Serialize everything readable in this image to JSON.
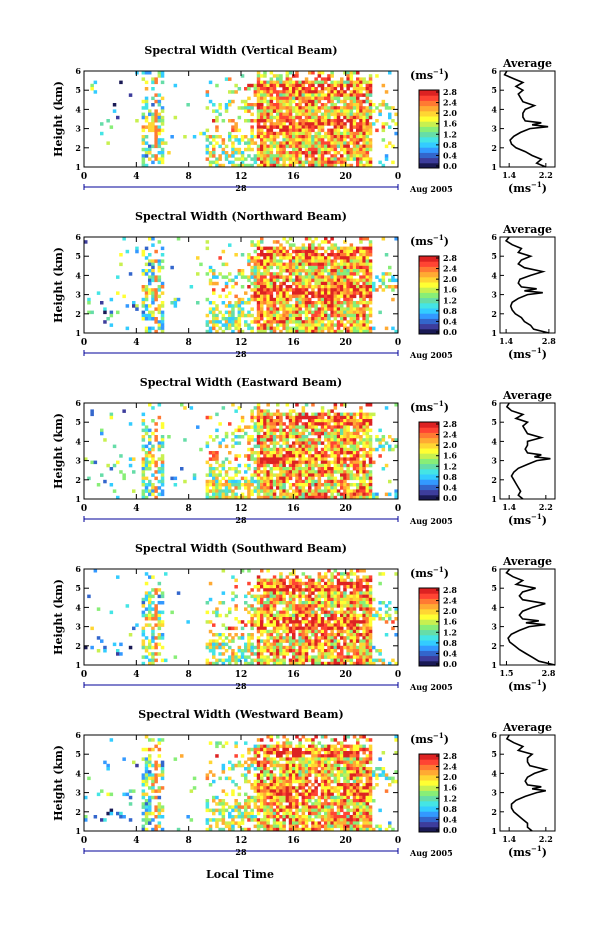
{
  "colors": {
    "scale": [
      "#1a1a55",
      "#3d3d9c",
      "#3366cc",
      "#3399ff",
      "#33ccff",
      "#44e5e5",
      "#66dda8",
      "#88ee77",
      "#c8f050",
      "#ffff33",
      "#ffd633",
      "#ffaa33",
      "#ff7a33",
      "#ff4433",
      "#dd2222"
    ],
    "axis": "#000000",
    "time_axis_line": "#000099"
  },
  "x_label": "Local Time",
  "chart_data": [
    {
      "type": "heatmap",
      "title": "Spectral Width (Vertical Beam)",
      "ylabel": "Height (km)",
      "ylim": [
        1,
        6
      ],
      "yticks": [
        "1",
        "2",
        "3",
        "4",
        "5",
        "6"
      ],
      "xticks": [
        "0",
        "4",
        "8",
        "12",
        "16",
        "20",
        "0"
      ],
      "date_tick": "28",
      "date_label": "Aug 2005",
      "colorbar_unit": "(ms",
      "colorbar_sup": "−1",
      "colorbar_unit_close": ")",
      "colorbar_ticks": [
        "2.8",
        "2.4",
        "2.0",
        "1.6",
        "1.2",
        "0.8",
        "0.4",
        "0.0"
      ],
      "avg_title": "Average",
      "avg_xticks": [
        "1.4",
        "2.2"
      ],
      "avg_xlim": [
        1.2,
        2.4
      ],
      "avg_unit": "(ms",
      "avg_sup": "−1",
      "avg_unit_close": ")",
      "avg_profile": {
        "height": [
          1.0,
          1.2,
          1.4,
          1.6,
          1.8,
          2.0,
          2.2,
          2.4,
          2.6,
          2.8,
          3.0,
          3.1,
          3.2,
          3.3,
          3.4,
          3.6,
          3.8,
          4.0,
          4.2,
          4.4,
          4.6,
          4.8,
          5.0,
          5.2,
          5.4,
          5.6,
          5.8,
          6.0
        ],
        "width": [
          2.2,
          2.0,
          2.1,
          1.9,
          1.75,
          1.55,
          1.45,
          1.42,
          1.5,
          1.65,
          1.85,
          2.25,
          1.9,
          2.1,
          1.75,
          1.7,
          1.7,
          1.75,
          1.95,
          1.7,
          1.65,
          1.6,
          1.7,
          1.55,
          1.7,
          1.5,
          1.3,
          1.35
        ]
      }
    },
    {
      "type": "heatmap",
      "title": "Spectral Width (Northward Beam)",
      "ylabel": "Height (km)",
      "ylim": [
        1,
        6
      ],
      "yticks": [
        "1",
        "2",
        "3",
        "4",
        "5",
        "6"
      ],
      "xticks": [
        "0",
        "4",
        "8",
        "12",
        "16",
        "20",
        "0"
      ],
      "date_tick": "28",
      "date_label": "Aug 2005",
      "colorbar_unit": "(ms",
      "colorbar_sup": "−1",
      "colorbar_unit_close": ")",
      "colorbar_ticks": [
        "2.8",
        "2.4",
        "2.0",
        "1.6",
        "1.2",
        "0.8",
        "0.4",
        "0.0"
      ],
      "avg_title": "Average",
      "avg_xticks": [
        "1.4",
        "2.8"
      ],
      "avg_xlim": [
        1.2,
        3.0
      ],
      "avg_profile": {
        "height": [
          1.0,
          1.2,
          1.4,
          1.6,
          1.8,
          2.0,
          2.2,
          2.4,
          2.6,
          2.8,
          3.0,
          3.1,
          3.2,
          3.3,
          3.4,
          3.6,
          3.8,
          4.0,
          4.2,
          4.4,
          4.6,
          4.8,
          5.0,
          5.2,
          5.4,
          5.6,
          5.8,
          6.0
        ],
        "width": [
          2.8,
          2.3,
          2.2,
          2.0,
          1.9,
          1.7,
          1.6,
          1.55,
          1.6,
          1.8,
          2.1,
          2.6,
          2.0,
          2.4,
          1.9,
          1.8,
          1.85,
          2.2,
          2.6,
          2.0,
          1.8,
          1.9,
          2.2,
          1.8,
          1.9,
          1.6,
          1.4,
          1.5
        ]
      },
      "avg_unit": "(ms",
      "avg_sup": "−1",
      "avg_unit_close": ")"
    },
    {
      "type": "heatmap",
      "title": "Spectral Width (Eastward Beam)",
      "ylabel": "Height (km)",
      "ylim": [
        1,
        6
      ],
      "yticks": [
        "1",
        "2",
        "3",
        "4",
        "5",
        "6"
      ],
      "xticks": [
        "0",
        "4",
        "8",
        "12",
        "16",
        "20",
        "0"
      ],
      "date_tick": "28",
      "date_label": "Aug 2005",
      "colorbar_unit": "(ms",
      "colorbar_sup": "−1",
      "colorbar_unit_close": ")",
      "colorbar_ticks": [
        "2.8",
        "2.4",
        "2.0",
        "1.6",
        "1.2",
        "0.8",
        "0.4",
        "0.0"
      ],
      "avg_title": "Average",
      "avg_xticks": [
        "1.4",
        "2.2"
      ],
      "avg_xlim": [
        1.2,
        2.4
      ],
      "avg_profile": {
        "height": [
          1.0,
          1.2,
          1.4,
          1.6,
          1.8,
          2.0,
          2.2,
          2.4,
          2.6,
          2.8,
          3.0,
          3.1,
          3.2,
          3.3,
          3.4,
          3.6,
          3.8,
          4.0,
          4.2,
          4.4,
          4.6,
          4.8,
          5.0,
          5.2,
          5.4,
          5.6,
          5.8,
          6.0
        ],
        "width": [
          1.7,
          1.6,
          1.65,
          1.6,
          1.55,
          1.5,
          1.45,
          1.5,
          1.6,
          1.8,
          2.0,
          2.3,
          1.95,
          2.1,
          1.8,
          1.75,
          1.8,
          1.8,
          2.1,
          1.8,
          1.75,
          1.7,
          1.8,
          1.55,
          1.7,
          1.45,
          1.35,
          1.4
        ]
      },
      "avg_unit": "(ms",
      "avg_sup": "−1",
      "avg_unit_close": ")"
    },
    {
      "type": "heatmap",
      "title": "Spectral Width (Southward Beam)",
      "ylabel": "Height (km)",
      "ylim": [
        1,
        6
      ],
      "yticks": [
        "1",
        "2",
        "3",
        "4",
        "5",
        "6"
      ],
      "xticks": [
        "0",
        "4",
        "8",
        "12",
        "16",
        "20",
        "0"
      ],
      "date_tick": "28",
      "date_label": "Aug 2005",
      "colorbar_unit": "(ms",
      "colorbar_sup": "−1",
      "colorbar_unit_close": ")",
      "colorbar_ticks": [
        "2.8",
        "2.4",
        "2.0",
        "1.6",
        "1.2",
        "0.8",
        "0.4",
        "0.0"
      ],
      "avg_title": "Average",
      "avg_xticks": [
        "1.5",
        "2.8"
      ],
      "avg_xlim": [
        1.3,
        3.0
      ],
      "avg_profile": {
        "height": [
          1.0,
          1.2,
          1.4,
          1.6,
          1.8,
          2.0,
          2.2,
          2.4,
          2.6,
          2.8,
          3.0,
          3.1,
          3.2,
          3.3,
          3.4,
          3.6,
          3.8,
          4.0,
          4.2,
          4.4,
          4.6,
          4.8,
          5.0,
          5.2,
          5.4,
          5.6,
          5.8,
          6.0
        ],
        "width": [
          3.0,
          2.5,
          2.3,
          2.1,
          1.9,
          1.75,
          1.6,
          1.55,
          1.65,
          1.9,
          2.2,
          2.7,
          2.1,
          2.5,
          2.0,
          1.9,
          2.0,
          2.3,
          2.7,
          2.0,
          1.9,
          2.0,
          2.4,
          1.8,
          2.0,
          1.7,
          1.5,
          1.6
        ]
      },
      "avg_unit": "(ms",
      "avg_sup": "−1",
      "avg_unit_close": ")"
    },
    {
      "type": "heatmap",
      "title": "Spectral Width (Westward Beam)",
      "ylabel": "Height (km)",
      "ylim": [
        1,
        6
      ],
      "yticks": [
        "1",
        "2",
        "3",
        "4",
        "5",
        "6"
      ],
      "xticks": [
        "0",
        "4",
        "8",
        "12",
        "16",
        "20",
        "0"
      ],
      "date_tick": "28",
      "date_label": "Aug 2005",
      "colorbar_unit": "(ms",
      "colorbar_sup": "−1",
      "colorbar_unit_close": ")",
      "colorbar_ticks": [
        "2.8",
        "2.4",
        "2.0",
        "1.6",
        "1.2",
        "0.8",
        "0.4",
        "0.0"
      ],
      "avg_title": "Average",
      "avg_xticks": [
        "1.4",
        "2.2"
      ],
      "avg_xlim": [
        1.2,
        2.4
      ],
      "avg_profile": {
        "height": [
          1.0,
          1.2,
          1.4,
          1.6,
          1.8,
          2.0,
          2.2,
          2.4,
          2.6,
          2.8,
          3.0,
          3.1,
          3.2,
          3.3,
          3.4,
          3.6,
          3.8,
          4.0,
          4.2,
          4.4,
          4.6,
          4.8,
          5.0,
          5.2,
          5.4,
          5.6,
          5.8,
          6.0
        ],
        "width": [
          1.9,
          1.8,
          1.8,
          1.7,
          1.6,
          1.5,
          1.45,
          1.45,
          1.55,
          1.75,
          2.0,
          2.2,
          1.9,
          2.1,
          1.8,
          1.75,
          1.8,
          1.95,
          2.2,
          1.85,
          1.8,
          1.8,
          1.9,
          1.6,
          1.7,
          1.5,
          1.35,
          1.4
        ]
      },
      "avg_unit": "(ms",
      "avg_sup": "−1",
      "avg_unit_close": ")"
    }
  ]
}
